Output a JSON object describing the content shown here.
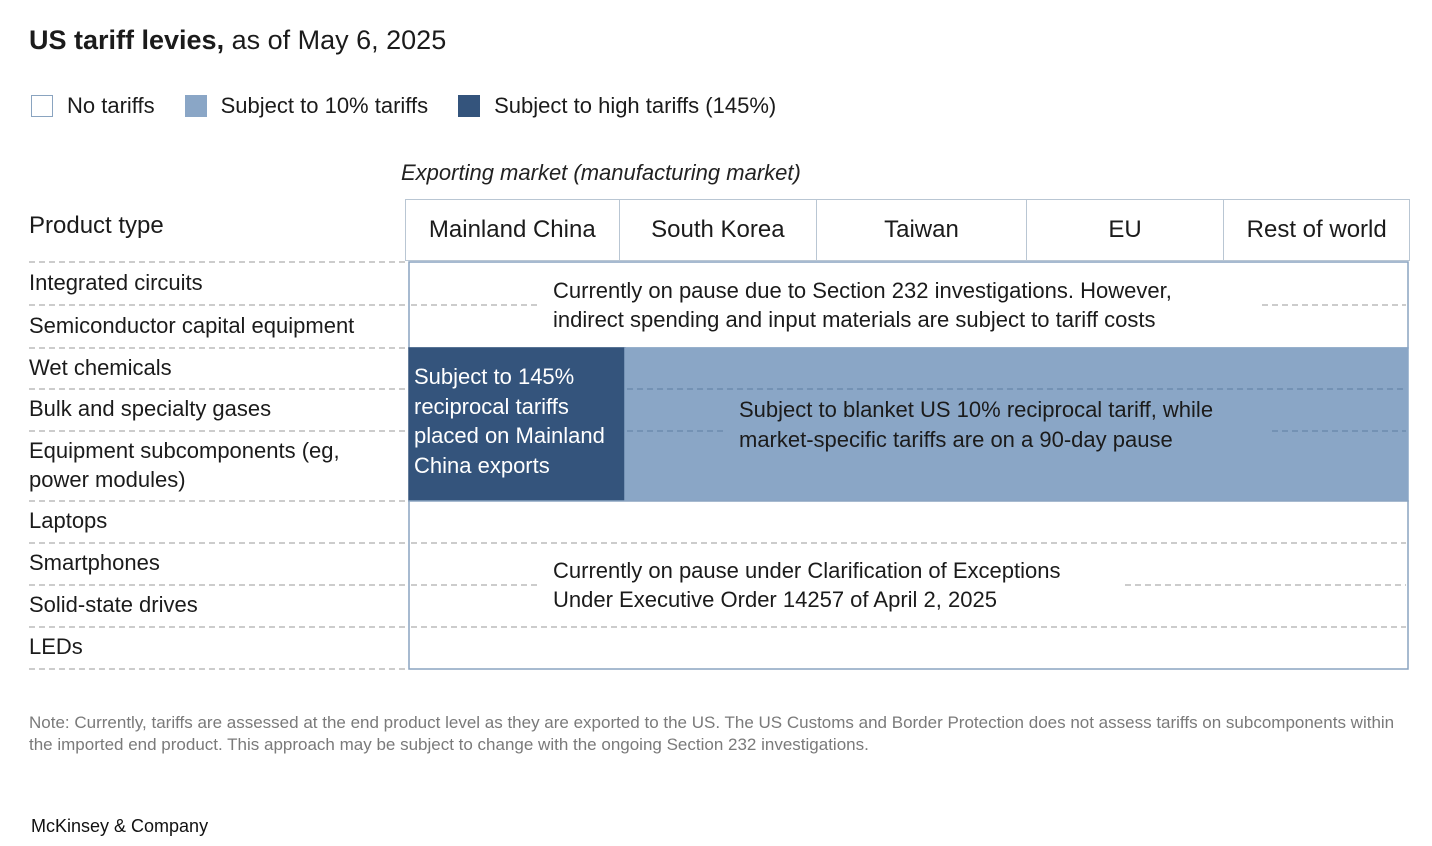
{
  "header": {
    "title_bold": "US tariff levies,",
    "title_rest": " as of May 6, 2025"
  },
  "legend": [
    {
      "label": "No tariffs",
      "color": "#ffffff"
    },
    {
      "label": "Subject to 10% tariffs",
      "color": "#8aa6c6"
    },
    {
      "label": "Subject to high tariffs (145%)",
      "color": "#34547c"
    }
  ],
  "chart_data": {
    "type": "table",
    "column_group_label": "Exporting market (manufacturing market)",
    "row_header": "Product type",
    "columns": [
      "Mainland China",
      "South Korea",
      "Taiwan",
      "EU",
      "Rest of world"
    ],
    "rows": [
      "Integrated circuits",
      "Semiconductor capital equipment",
      "Wet chemicals",
      "Bulk and specialty gases",
      "Equipment subcomponents (eg, power modules)",
      "Laptops",
      "Smartphones",
      "Solid-state drives",
      "LEDs"
    ],
    "blocks": [
      {
        "rows": [
          0,
          1
        ],
        "columns": [
          0,
          4
        ],
        "category": "No tariffs",
        "color": "#ffffff",
        "text_lines": [
          "Currently on pause due to Section 232 investigations. However,",
          "indirect spending and input materials are subject to tariff costs"
        ]
      },
      {
        "rows": [
          2,
          4
        ],
        "columns": [
          0,
          0
        ],
        "category": "Subject to high tariffs (145%)",
        "color": "#34547c",
        "text_lines": [
          "Subject to 145%",
          "reciprocal tariffs",
          "placed on Mainland",
          "China exports"
        ]
      },
      {
        "rows": [
          2,
          4
        ],
        "columns": [
          1,
          4
        ],
        "category": "Subject to 10% tariffs",
        "color": "#8aa6c6",
        "text_lines": [
          "Subject to blanket US 10% reciprocal tariff, while",
          "market-specific tariffs are on a 90-day pause"
        ]
      },
      {
        "rows": [
          5,
          8
        ],
        "columns": [
          0,
          4
        ],
        "category": "No tariffs",
        "color": "#ffffff",
        "text_lines": [
          "Currently on pause under Clarification of Exceptions",
          "Under Executive Order 14257 of April 2, 2025"
        ]
      }
    ]
  },
  "footer": {
    "note": "Note: Currently, tariffs are assessed at the end product level as they are exported to the US. The US Customs and Border Protection does not assess tariffs on subcomponents within the imported end product. This approach may be subject to change with the ongoing Section 232 investigations.",
    "brand": "McKinsey & Company"
  }
}
